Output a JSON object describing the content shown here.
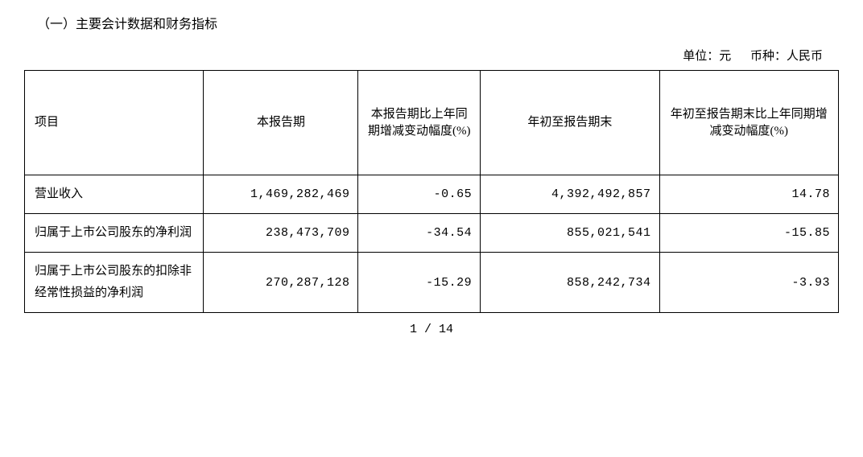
{
  "section_heading": "（一）主要会计数据和财务指标",
  "unit_label": "单位：元",
  "currency_label": "币种：人民币",
  "table": {
    "columns": [
      "项目",
      "本报告期",
      "本报告期比上年同期增减变动幅度(%)",
      "年初至报告期末",
      "年初至报告期末比上年同期增减变动幅度(%)"
    ],
    "rows": [
      {
        "label": "营业收入",
        "c1": "1,469,282,469",
        "c2": "-0.65",
        "c3": "4,392,492,857",
        "c4": "14.78"
      },
      {
        "label": "归属于上市公司股东的净利润",
        "c1": "238,473,709",
        "c2": "-34.54",
        "c3": "855,021,541",
        "c4": "-15.85"
      },
      {
        "label": "归属于上市公司股东的扣除非经常性损益的净利润",
        "c1": "270,287,128",
        "c2": "-15.29",
        "c3": "858,242,734",
        "c4": "-3.93"
      }
    ]
  },
  "page_number": "1 / 14",
  "colors": {
    "text": "#000000",
    "border": "#000000",
    "background": "#ffffff"
  },
  "typography": {
    "body_fontsize_pt": 12,
    "font_family": "SimSun",
    "line_height": 1.4
  }
}
